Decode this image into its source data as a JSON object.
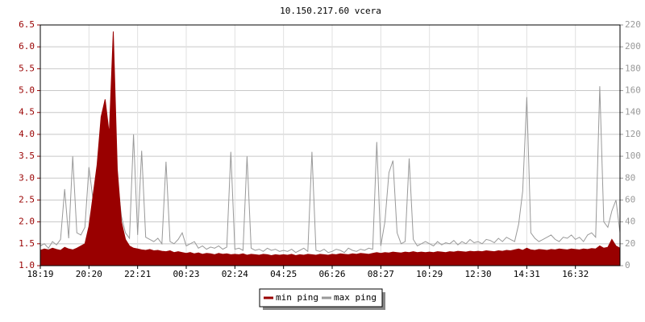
{
  "chart_data": {
    "type": "line",
    "title": "10.150.217.60 vcera",
    "categories": [
      "18:19",
      null,
      null,
      null,
      null,
      null,
      null,
      null,
      null,
      null,
      null,
      null,
      "20:20",
      null,
      null,
      null,
      null,
      null,
      null,
      null,
      null,
      null,
      null,
      null,
      "22:21",
      null,
      null,
      null,
      null,
      null,
      null,
      null,
      null,
      null,
      null,
      null,
      "00:23",
      null,
      null,
      null,
      null,
      null,
      null,
      null,
      null,
      null,
      null,
      null,
      "02:24",
      null,
      null,
      null,
      null,
      null,
      null,
      null,
      null,
      null,
      null,
      null,
      "04:25",
      null,
      null,
      null,
      null,
      null,
      null,
      null,
      null,
      null,
      null,
      null,
      "06:26",
      null,
      null,
      null,
      null,
      null,
      null,
      null,
      null,
      null,
      null,
      null,
      "08:27",
      null,
      null,
      null,
      null,
      null,
      null,
      null,
      null,
      null,
      null,
      null,
      "10:29",
      null,
      null,
      null,
      null,
      null,
      null,
      null,
      null,
      null,
      null,
      null,
      "12:30",
      null,
      null,
      null,
      null,
      null,
      null,
      null,
      null,
      null,
      null,
      null,
      "14:31",
      null,
      null,
      null,
      null,
      null,
      null,
      null,
      null,
      null,
      null,
      null,
      "16:32",
      null,
      null,
      null,
      null,
      null,
      null,
      null,
      null,
      null,
      null,
      null
    ],
    "series": [
      {
        "name": "min ping",
        "color": "#990000",
        "axis": "y",
        "values": [
          1.35,
          1.38,
          1.36,
          1.4,
          1.37,
          1.35,
          1.42,
          1.38,
          1.36,
          1.4,
          1.45,
          1.5,
          1.9,
          2.6,
          3.3,
          4.4,
          4.8,
          4.0,
          6.35,
          3.2,
          2.0,
          1.6,
          1.45,
          1.4,
          1.38,
          1.36,
          1.35,
          1.37,
          1.34,
          1.35,
          1.33,
          1.32,
          1.34,
          1.3,
          1.32,
          1.3,
          1.28,
          1.3,
          1.27,
          1.29,
          1.26,
          1.28,
          1.27,
          1.25,
          1.28,
          1.26,
          1.27,
          1.25,
          1.26,
          1.25,
          1.27,
          1.24,
          1.26,
          1.25,
          1.24,
          1.26,
          1.25,
          1.23,
          1.25,
          1.24,
          1.25,
          1.24,
          1.26,
          1.23,
          1.25,
          1.24,
          1.26,
          1.25,
          1.24,
          1.26,
          1.25,
          1.24,
          1.26,
          1.25,
          1.27,
          1.26,
          1.25,
          1.27,
          1.26,
          1.28,
          1.27,
          1.26,
          1.28,
          1.3,
          1.28,
          1.3,
          1.29,
          1.31,
          1.3,
          1.29,
          1.31,
          1.3,
          1.32,
          1.3,
          1.31,
          1.3,
          1.31,
          1.3,
          1.32,
          1.31,
          1.3,
          1.32,
          1.31,
          1.33,
          1.32,
          1.31,
          1.33,
          1.32,
          1.33,
          1.32,
          1.34,
          1.33,
          1.32,
          1.34,
          1.33,
          1.35,
          1.34,
          1.36,
          1.38,
          1.35,
          1.4,
          1.36,
          1.35,
          1.37,
          1.36,
          1.35,
          1.37,
          1.36,
          1.38,
          1.37,
          1.36,
          1.38,
          1.37,
          1.36,
          1.38,
          1.37,
          1.39,
          1.38,
          1.45,
          1.4,
          1.42,
          1.6,
          1.45,
          1.4
        ]
      },
      {
        "name": "max ping",
        "color": "#999999",
        "axis": "y2",
        "values": [
          18,
          20,
          16,
          22,
          19,
          24,
          70,
          25,
          100,
          30,
          28,
          35,
          90,
          60,
          55,
          70,
          65,
          75,
          190,
          80,
          45,
          30,
          25,
          120,
          28,
          105,
          26,
          24,
          22,
          25,
          20,
          95,
          22,
          20,
          24,
          30,
          18,
          20,
          22,
          16,
          18,
          15,
          17,
          16,
          18,
          15,
          17,
          104,
          15,
          16,
          14,
          100,
          16,
          14,
          15,
          13,
          16,
          14,
          15,
          13,
          14,
          13,
          15,
          12,
          14,
          16,
          13,
          104,
          14,
          13,
          15,
          12,
          13,
          15,
          14,
          12,
          16,
          14,
          13,
          15,
          14,
          16,
          15,
          113,
          18,
          40,
          85,
          96,
          30,
          20,
          22,
          98,
          24,
          18,
          20,
          22,
          20,
          18,
          22,
          19,
          21,
          20,
          23,
          19,
          22,
          20,
          24,
          21,
          22,
          20,
          24,
          23,
          21,
          25,
          22,
          26,
          24,
          22,
          38,
          68,
          154,
          30,
          25,
          22,
          24,
          26,
          28,
          24,
          22,
          26,
          25,
          28,
          24,
          26,
          22,
          28,
          30,
          26,
          164,
          40,
          35,
          50,
          60,
          30
        ]
      }
    ],
    "ylim": [
      1,
      6.5
    ],
    "yticks": [
      {
        "value": 1,
        "label": "1.0"
      },
      1.5,
      {
        "value": 2,
        "label": "2.0"
      },
      2.5,
      {
        "value": 3,
        "label": "3.0"
      },
      3.5,
      {
        "value": 4,
        "label": "4.0"
      },
      4.5,
      {
        "value": 5,
        "label": "5.0"
      },
      5.5,
      {
        "value": 6,
        "label": "6.0"
      },
      6.5
    ],
    "y2lim": [
      0,
      220
    ],
    "y2ticks": [
      0,
      20,
      40,
      60,
      80,
      100,
      120,
      140,
      160,
      180,
      200,
      220
    ],
    "grid": true
  }
}
